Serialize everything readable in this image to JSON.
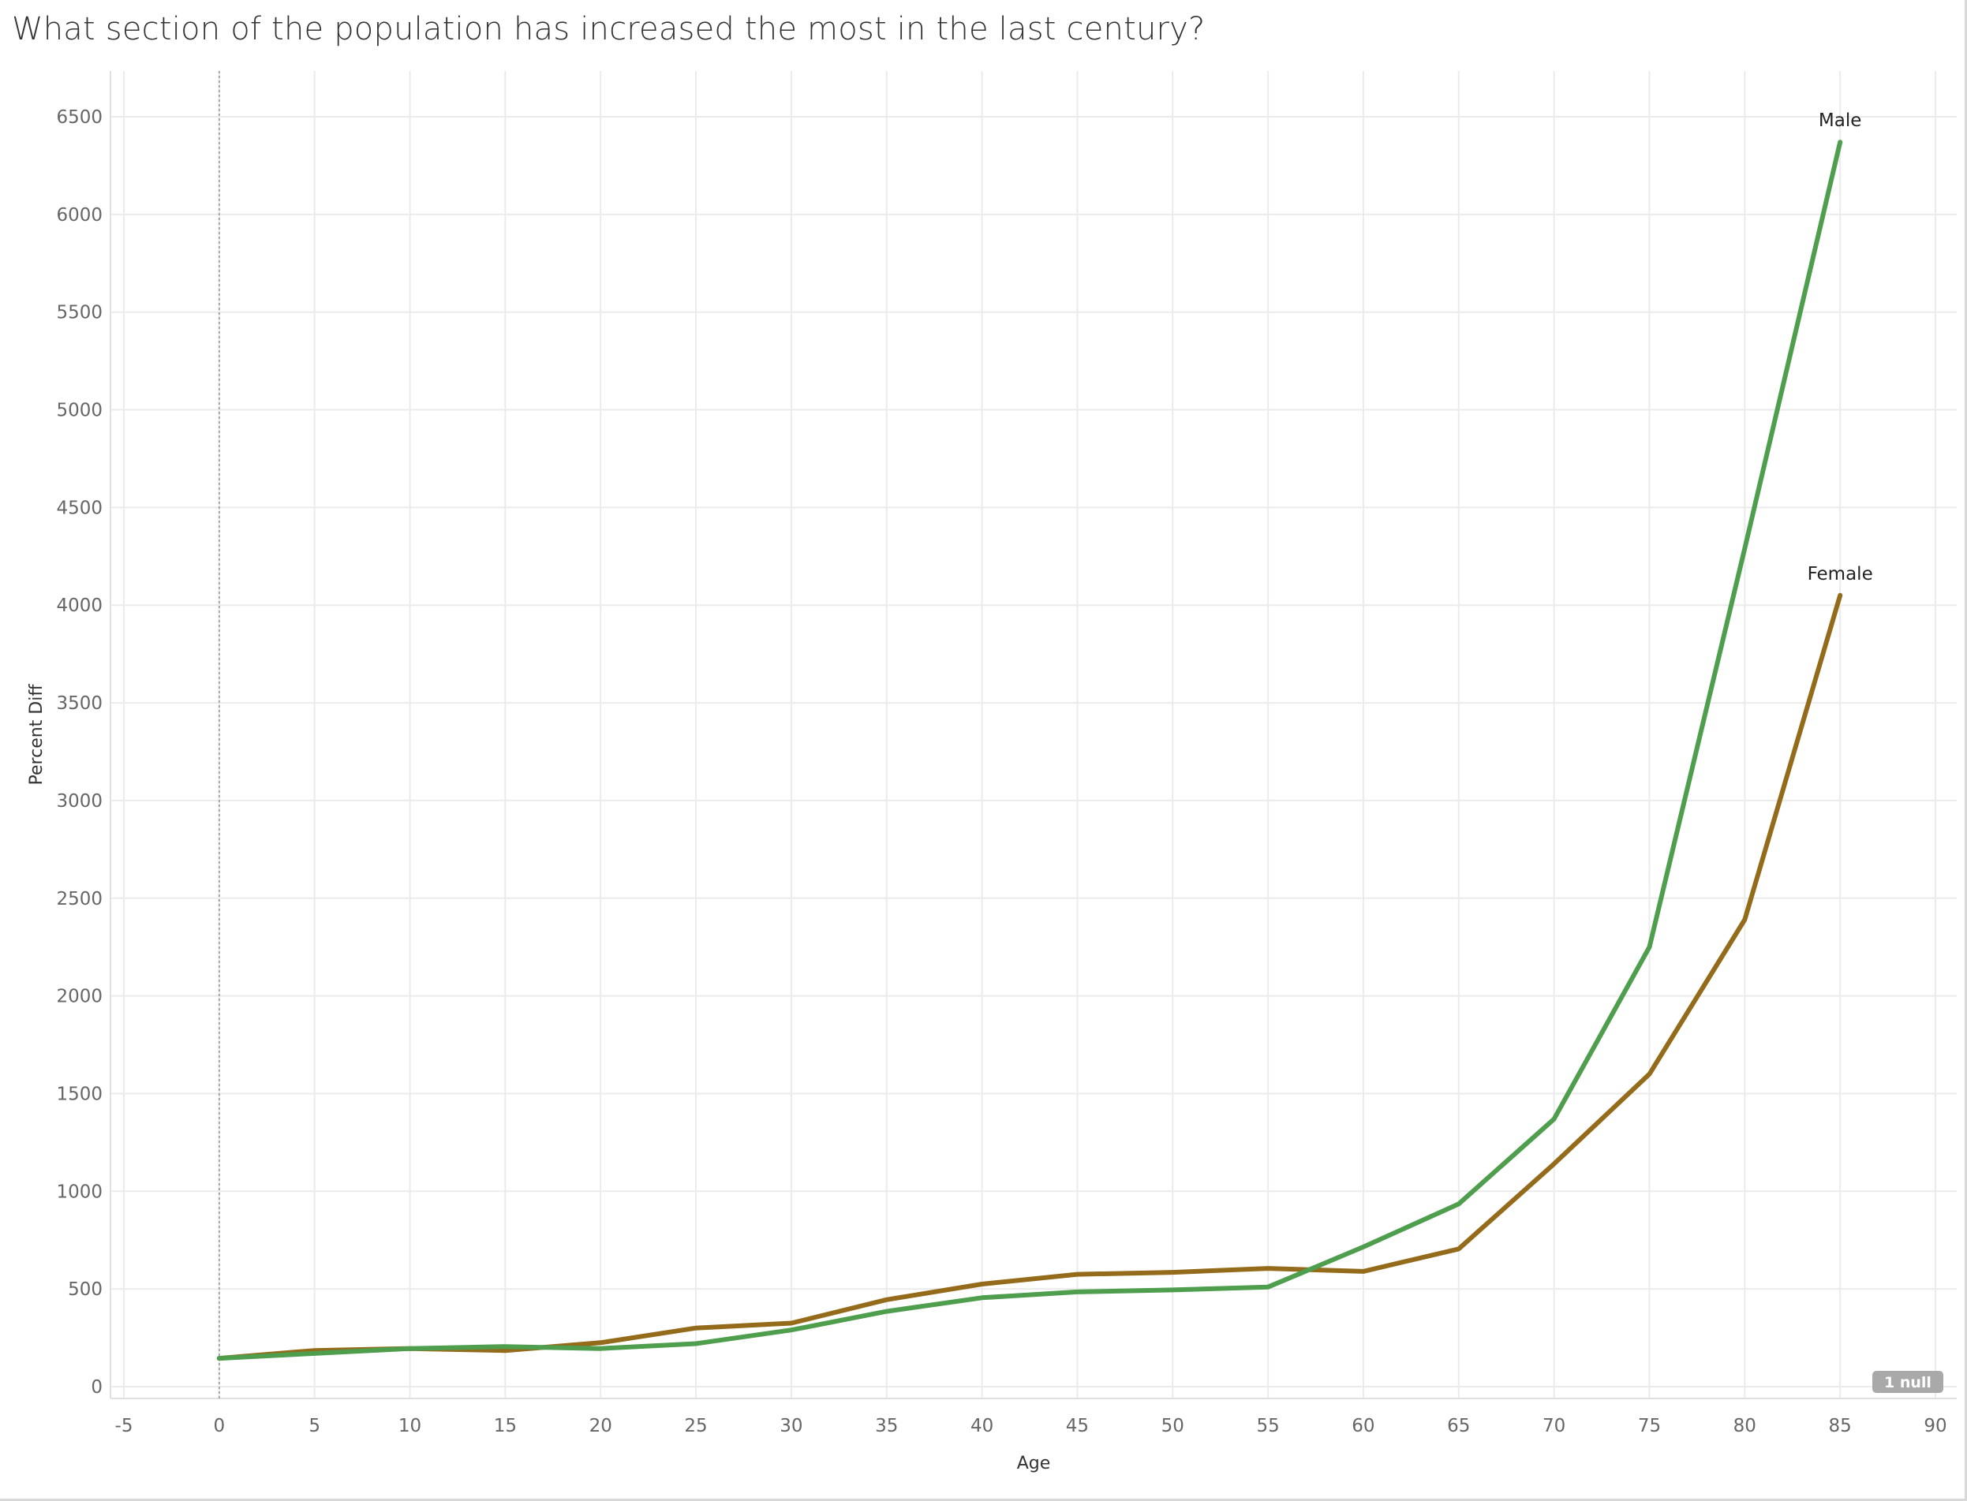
{
  "title": "What section of the population has increased the most in the last century?",
  "chart_data": {
    "type": "line",
    "title": "What section of the population has increased the most in the last century?",
    "xlabel": "Age",
    "ylabel": "Percent Diff",
    "xlim": [
      -5,
      90
    ],
    "ylim": [
      0,
      6500
    ],
    "x_ticks": [
      -5,
      0,
      5,
      10,
      15,
      20,
      25,
      30,
      35,
      40,
      45,
      50,
      55,
      60,
      65,
      70,
      75,
      80,
      85,
      90
    ],
    "y_ticks": [
      0,
      500,
      1000,
      1500,
      2000,
      2500,
      3000,
      3500,
      4000,
      4500,
      5000,
      5500,
      6000,
      6500
    ],
    "grid": true,
    "x": [
      0,
      5,
      10,
      15,
      20,
      25,
      30,
      35,
      40,
      45,
      50,
      55,
      60,
      65,
      70,
      75,
      80,
      85
    ],
    "series": [
      {
        "name": "Male",
        "color": "#4e9e4e",
        "values": [
          145,
          170,
          195,
          205,
          195,
          220,
          290,
          385,
          455,
          485,
          495,
          510,
          715,
          935,
          1370,
          2250,
          4290,
          6370
        ]
      },
      {
        "name": "Female",
        "color": "#946b1a",
        "values": [
          145,
          185,
          195,
          185,
          225,
          300,
          325,
          445,
          525,
          575,
          585,
          605,
          590,
          705,
          1140,
          1600,
          2390,
          4050
        ]
      }
    ],
    "annotations": [
      "1 null"
    ]
  }
}
